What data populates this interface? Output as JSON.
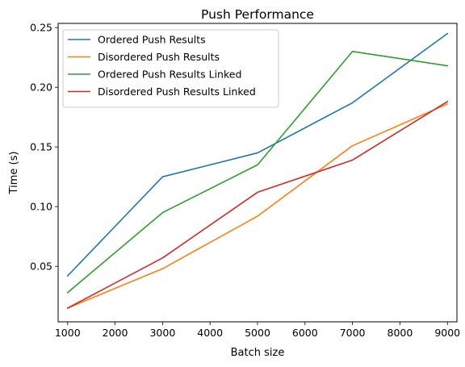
{
  "chart_data": {
    "type": "line",
    "title": "Push Performance",
    "xlabel": "Batch size",
    "ylabel": "Time (s)",
    "x": [
      1000,
      3000,
      5000,
      7000,
      9000
    ],
    "xlim": [
      800,
      9200
    ],
    "ylim": [
      0.0035,
      0.2535
    ],
    "xticks": [
      1000,
      2000,
      3000,
      4000,
      5000,
      6000,
      7000,
      8000,
      9000
    ],
    "yticks": [
      0.05,
      0.1,
      0.15,
      0.2,
      0.25
    ],
    "ytick_labels": [
      "0.05",
      "0.10",
      "0.15",
      "0.20",
      "0.25"
    ],
    "grid": false,
    "legend_position": "top-left",
    "series": [
      {
        "name": "Ordered Push Results",
        "color": "#1f77b4",
        "values": [
          0.042,
          0.125,
          0.145,
          0.187,
          0.245
        ]
      },
      {
        "name": "Disordered Push Results",
        "color": "#ff7f0e",
        "values": [
          0.015,
          0.048,
          0.092,
          0.151,
          0.186
        ]
      },
      {
        "name": "Ordered Push Results Linked",
        "color": "#2ca02c",
        "values": [
          0.028,
          0.095,
          0.135,
          0.23,
          0.218
        ]
      },
      {
        "name": "Disordered Push Results Linked",
        "color": "#d62728",
        "values": [
          0.015,
          0.057,
          0.112,
          0.139,
          0.188
        ]
      }
    ]
  }
}
